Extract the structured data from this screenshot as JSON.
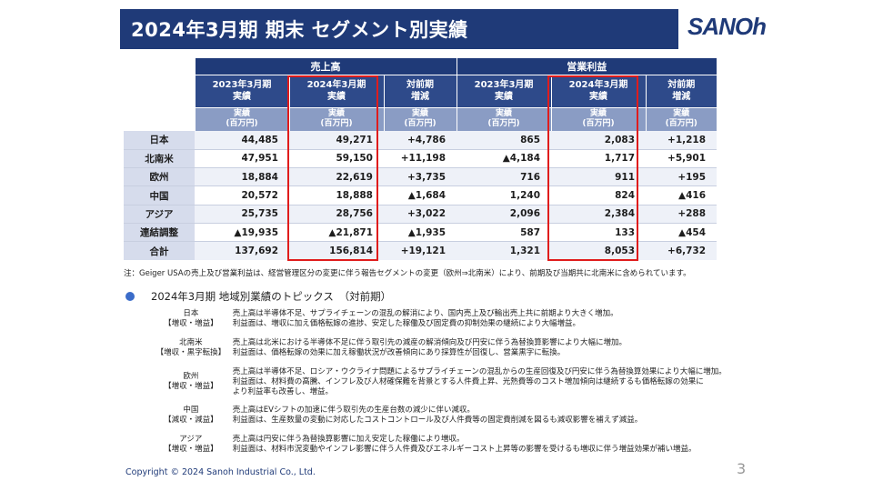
{
  "title": "2024年3月期 期末 セグメント別実績",
  "logo_text": "SANOh",
  "table": {
    "group_sales": "売上高",
    "group_op": "営業利益",
    "col_prev": [
      "2023年3月期",
      "実績"
    ],
    "col_curr": [
      "2024年3月期",
      "実績"
    ],
    "col_diff": [
      "対前期",
      "増減"
    ],
    "unit": [
      "実績",
      "(百万円)"
    ],
    "rows": [
      {
        "label": "日本",
        "s_prev": "44,485",
        "s_curr": "49,271",
        "s_diff": "+4,786",
        "o_prev": "865",
        "o_curr": "2,083",
        "o_diff": "+1,218"
      },
      {
        "label": "北南米",
        "s_prev": "47,951",
        "s_curr": "59,150",
        "s_diff": "+11,198",
        "o_prev": "▲4,184",
        "o_curr": "1,717",
        "o_diff": "+5,901"
      },
      {
        "label": "欧州",
        "s_prev": "18,884",
        "s_curr": "22,619",
        "s_diff": "+3,735",
        "o_prev": "716",
        "o_curr": "911",
        "o_diff": "+195"
      },
      {
        "label": "中国",
        "s_prev": "20,572",
        "s_curr": "18,888",
        "s_diff": "▲1,684",
        "o_prev": "1,240",
        "o_curr": "824",
        "o_diff": "▲416"
      },
      {
        "label": "アジア",
        "s_prev": "25,735",
        "s_curr": "28,756",
        "s_diff": "+3,022",
        "o_prev": "2,096",
        "o_curr": "2,384",
        "o_diff": "+288"
      },
      {
        "label": "連結調整",
        "s_prev": "▲19,935",
        "s_curr": "▲21,871",
        "s_diff": "▲1,935",
        "o_prev": "587",
        "o_curr": "133",
        "o_diff": "▲454"
      },
      {
        "label": "合計",
        "s_prev": "137,692",
        "s_curr": "156,814",
        "s_diff": "+19,121",
        "o_prev": "1,321",
        "o_curr": "8,053",
        "o_diff": "+6,732"
      }
    ]
  },
  "note": "注：Geiger USAの売上及び営業利益は、経営管理区分の変更に伴う報告セグメントの変更（欧州⇒北南米）により、前期及び当期共に北南米に含められています。",
  "topics": {
    "heading": "2024年3月期 地域別業績のトピックス　（対前期）",
    "items": [
      {
        "region": "日本",
        "tag": "【増収・増益】",
        "lines": [
          "売上高は半導体不足、サプライチェーンの混乱の解消により、国内売上及び輸出売上共に前期より大きく増加。",
          "利益面は、増収に加え価格転嫁の進捗、安定した稼働及び固定費の抑制効果の継続により大幅増益。"
        ]
      },
      {
        "region": "北南米",
        "tag": "【増収・黒字転換】",
        "lines": [
          "売上高は北米における半導体不足に伴う取引先の減産の解消傾向及び円安に伴う為替換算影響により大幅に増加。",
          "利益面は、価格転嫁の効果に加え稼働状況が改善傾向にあり採算性が回復し、営業黒字に転換。"
        ]
      },
      {
        "region": "欧州",
        "tag": "【増収・増益】",
        "lines": [
          "売上高は半導体不足、ロシア・ウクライナ問題によるサプライチェーンの混乱からの生産回復及び円安に伴う為替換算効果により大幅に増加。",
          "利益面は、材料費の高騰、インフレ及び人材確保難を背景とする人件費上昇、光熱費等のコスト増加傾向は継続するも価格転嫁の効果に",
          "より利益率も改善し、増益。"
        ]
      },
      {
        "region": "中国",
        "tag": "【減収・減益】",
        "lines": [
          "売上高はEVシフトの加速に伴う取引先の生産台数の減少に伴い減収。",
          "利益面は、生産数量の変動に対応したコストコントロール及び人件費等の固定費削減を図るも減収影響を補えず減益。"
        ]
      },
      {
        "region": "アジア",
        "tag": "【増収・増益】",
        "lines": [
          "売上高は円安に伴う為替換算影響に加え安定した稼働により増収。",
          "利益面は、材料市況変動やインフレ影響に伴う人件費及びエネルギーコスト上昇等の影響を受けるも増収に伴う増益効果が補い増益。"
        ]
      }
    ]
  },
  "footer": "Copyright © 2024 Sanoh Industrial Co., Ltd.",
  "page_number": "3",
  "colors": {
    "navy": "#1f3a78",
    "highlight": "#e01c1c",
    "bullet": "#3b6cc9"
  }
}
